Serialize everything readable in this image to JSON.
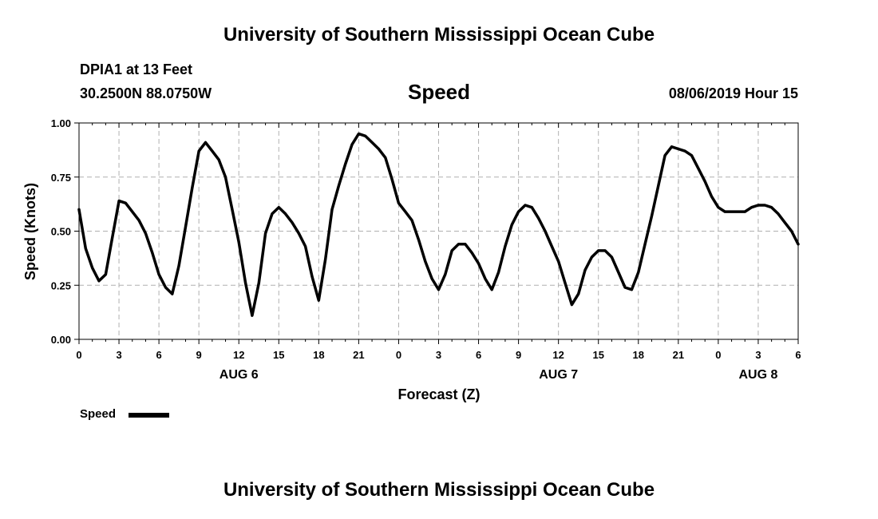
{
  "header": {
    "top_title": "University of Southern Mississippi Ocean Cube",
    "bottom_title": "University of Southern Mississippi Ocean Cube",
    "station": "DPIA1 at 13 Feet",
    "location": "30.2500N 88.0750W",
    "timestamp": "08/06/2019 Hour 15"
  },
  "chart_data": {
    "type": "line",
    "title": "Speed",
    "xlabel": "Forecast (Z)",
    "ylabel": "Speed (Knots)",
    "ylim": [
      0,
      1.0
    ],
    "yticks": [
      "0.00",
      "0.25",
      "0.50",
      "0.75",
      "1.00"
    ],
    "xlim": [
      0,
      54
    ],
    "xticks": [
      "0",
      "3",
      "6",
      "9",
      "12",
      "15",
      "18",
      "21",
      "0",
      "3",
      "6",
      "9",
      "12",
      "15",
      "18",
      "21",
      "0",
      "3",
      "6"
    ],
    "date_labels": [
      {
        "label": "AUG 6",
        "hour": 12
      },
      {
        "label": "AUG 7",
        "hour": 36
      },
      {
        "label": "AUG 8",
        "hour": 51
      }
    ],
    "grid": true,
    "series": [
      {
        "name": "Speed",
        "color": "#000000",
        "x": [
          0,
          0.5,
          1,
          1.5,
          2,
          2.5,
          3,
          3.5,
          4,
          4.5,
          5,
          5.5,
          6,
          6.5,
          7,
          7.5,
          8,
          8.5,
          9,
          9.5,
          10,
          10.5,
          11,
          11.5,
          12,
          12.5,
          13,
          13.5,
          14,
          14.5,
          15,
          15.5,
          16,
          16.5,
          17,
          17.5,
          18,
          18.5,
          19,
          19.5,
          20,
          20.5,
          21,
          21.5,
          22,
          22.5,
          23,
          23.5,
          24,
          24.5,
          25,
          25.5,
          26,
          26.5,
          27,
          27.5,
          28,
          28.5,
          29,
          29.5,
          30,
          30.5,
          31,
          31.5,
          32,
          32.5,
          33,
          33.5,
          34,
          34.5,
          35,
          35.5,
          36,
          36.5,
          37,
          37.5,
          38,
          38.5,
          39,
          39.5,
          40,
          40.5,
          41,
          41.5,
          42,
          42.5,
          43,
          43.5,
          44,
          44.5,
          45,
          45.5,
          46,
          46.5,
          47,
          47.5,
          48,
          48.5,
          49,
          49.5,
          50,
          50.5,
          51,
          51.5,
          52,
          52.5,
          53,
          53.5,
          54
        ],
        "values": [
          0.6,
          0.42,
          0.33,
          0.27,
          0.3,
          0.47,
          0.64,
          0.63,
          0.59,
          0.55,
          0.49,
          0.4,
          0.3,
          0.24,
          0.21,
          0.34,
          0.52,
          0.7,
          0.87,
          0.91,
          0.87,
          0.83,
          0.75,
          0.6,
          0.45,
          0.26,
          0.11,
          0.26,
          0.49,
          0.58,
          0.61,
          0.58,
          0.54,
          0.49,
          0.43,
          0.29,
          0.18,
          0.37,
          0.6,
          0.71,
          0.81,
          0.9,
          0.95,
          0.94,
          0.91,
          0.88,
          0.84,
          0.74,
          0.63,
          0.59,
          0.55,
          0.46,
          0.36,
          0.28,
          0.23,
          0.3,
          0.41,
          0.44,
          0.44,
          0.4,
          0.35,
          0.28,
          0.23,
          0.31,
          0.43,
          0.53,
          0.59,
          0.62,
          0.61,
          0.56,
          0.5,
          0.43,
          0.36,
          0.26,
          0.16,
          0.21,
          0.32,
          0.38,
          0.41,
          0.41,
          0.38,
          0.31,
          0.24,
          0.23,
          0.31,
          0.44,
          0.57,
          0.71,
          0.85,
          0.89,
          0.88,
          0.87,
          0.85,
          0.79,
          0.73,
          0.66,
          0.61,
          0.59,
          0.59,
          0.59,
          0.59,
          0.61,
          0.62,
          0.62,
          0.61,
          0.58,
          0.54,
          0.5,
          0.44
        ]
      }
    ],
    "legend": {
      "label": "Speed",
      "placement": "bottom-left"
    }
  }
}
